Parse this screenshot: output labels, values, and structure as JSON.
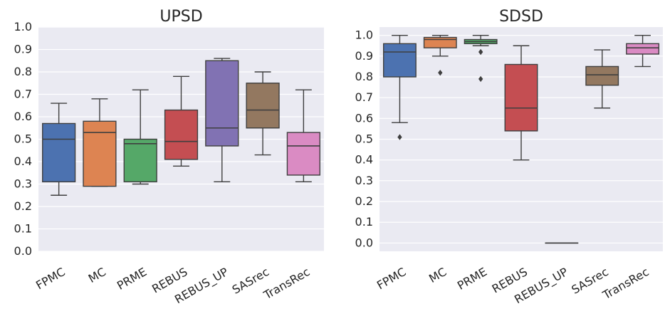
{
  "chart_data": [
    {
      "type": "box",
      "title": "UPSD",
      "xlabel": "",
      "ylabel": "",
      "ylim": [
        0.0,
        1.0
      ],
      "yticks": [
        "0.0",
        "0.1",
        "0.2",
        "0.3",
        "0.4",
        "0.5",
        "0.6",
        "0.7",
        "0.8",
        "0.9",
        "1.0"
      ],
      "grid": true,
      "categories": [
        "FPMC",
        "MC",
        "PRME",
        "REBUS",
        "REBUS_UP",
        "SASrec",
        "TransRec"
      ],
      "boxes": [
        {
          "category": "FPMC",
          "color": "#4c72b0",
          "whisker_low": 0.25,
          "q1": 0.31,
          "median": 0.5,
          "q3": 0.57,
          "whisker_high": 0.66,
          "outliers": []
        },
        {
          "category": "MC",
          "color": "#dd8452",
          "whisker_low": 0.29,
          "q1": 0.29,
          "median": 0.53,
          "q3": 0.58,
          "whisker_high": 0.68,
          "outliers": []
        },
        {
          "category": "PRME",
          "color": "#55a868",
          "whisker_low": 0.3,
          "q1": 0.31,
          "median": 0.48,
          "q3": 0.5,
          "whisker_high": 0.72,
          "outliers": []
        },
        {
          "category": "REBUS",
          "color": "#c44e52",
          "whisker_low": 0.38,
          "q1": 0.41,
          "median": 0.49,
          "q3": 0.63,
          "whisker_high": 0.78,
          "outliers": []
        },
        {
          "category": "REBUS_UP",
          "color": "#8172b3",
          "whisker_low": 0.31,
          "q1": 0.47,
          "median": 0.55,
          "q3": 0.85,
          "whisker_high": 0.86,
          "outliers": []
        },
        {
          "category": "SASrec",
          "color": "#937860",
          "whisker_low": 0.43,
          "q1": 0.55,
          "median": 0.63,
          "q3": 0.75,
          "whisker_high": 0.8,
          "outliers": []
        },
        {
          "category": "TransRec",
          "color": "#da8bc3",
          "whisker_low": 0.31,
          "q1": 0.34,
          "median": 0.47,
          "q3": 0.53,
          "whisker_high": 0.72,
          "outliers": []
        }
      ]
    },
    {
      "type": "box",
      "title": "SDSD",
      "xlabel": "",
      "ylabel": "",
      "ylim": [
        -0.04,
        1.04
      ],
      "yticks": [
        "0.0",
        "0.1",
        "0.2",
        "0.3",
        "0.4",
        "0.5",
        "0.6",
        "0.7",
        "0.8",
        "0.9",
        "1.0"
      ],
      "grid": true,
      "categories": [
        "FPMC",
        "MC",
        "PRME",
        "REBUS",
        "REBUS_UP",
        "SASrec",
        "TransRec"
      ],
      "boxes": [
        {
          "category": "FPMC",
          "color": "#4c72b0",
          "whisker_low": 0.58,
          "q1": 0.8,
          "median": 0.92,
          "q3": 0.96,
          "whisker_high": 1.0,
          "outliers": [
            0.51
          ]
        },
        {
          "category": "MC",
          "color": "#dd8452",
          "whisker_low": 0.9,
          "q1": 0.94,
          "median": 0.98,
          "q3": 0.99,
          "whisker_high": 1.0,
          "outliers": [
            0.82
          ]
        },
        {
          "category": "PRME",
          "color": "#55a868",
          "whisker_low": 0.95,
          "q1": 0.96,
          "median": 0.97,
          "q3": 0.98,
          "whisker_high": 1.0,
          "outliers": [
            0.92,
            0.79
          ]
        },
        {
          "category": "REBUS",
          "color": "#c44e52",
          "whisker_low": 0.4,
          "q1": 0.54,
          "median": 0.65,
          "q3": 0.86,
          "whisker_high": 0.95,
          "outliers": []
        },
        {
          "category": "REBUS_UP",
          "color": "#8172b3",
          "whisker_low": 0.0,
          "q1": 0.0,
          "median": 0.0,
          "q3": 0.0,
          "whisker_high": 0.0,
          "outliers": []
        },
        {
          "category": "SASrec",
          "color": "#937860",
          "whisker_low": 0.65,
          "q1": 0.76,
          "median": 0.81,
          "q3": 0.85,
          "whisker_high": 0.93,
          "outliers": []
        },
        {
          "category": "TransRec",
          "color": "#da8bc3",
          "whisker_low": 0.85,
          "q1": 0.91,
          "median": 0.94,
          "q3": 0.96,
          "whisker_high": 1.0,
          "outliers": []
        }
      ]
    }
  ]
}
